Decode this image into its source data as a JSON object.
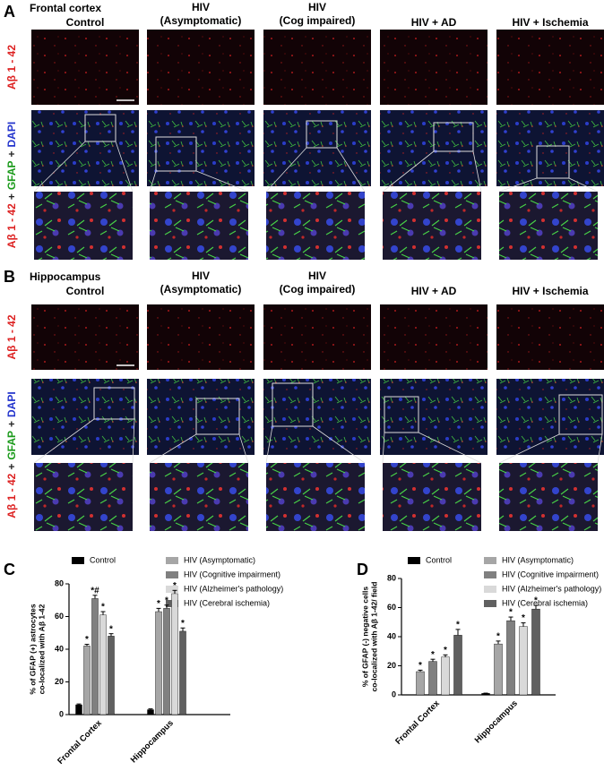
{
  "panels": [
    {
      "letter": "A",
      "region": "Frontal cortex",
      "columns": [
        [
          "Control"
        ],
        [
          "HIV",
          "(Asymptomatic)"
        ],
        [
          "HIV",
          "(Cog impaired)"
        ],
        [
          "HIV + AD"
        ],
        [
          "HIV + Ischemia"
        ]
      ],
      "row_labels": [
        [
          "Aβ 1 - 42"
        ],
        [
          "Aβ 1 - 42",
          "+",
          "GFAP",
          "+",
          "DAPI"
        ]
      ]
    },
    {
      "letter": "B",
      "region": "Hippocampus",
      "columns": [
        [
          "Control"
        ],
        [
          "HIV",
          "(Asymptomatic)"
        ],
        [
          "HIV",
          "(Cog impaired)"
        ],
        [
          "HIV + AD"
        ],
        [
          "HIV + Ischemia"
        ]
      ],
      "row_labels": [
        [
          "Aβ 1 - 42"
        ],
        [
          "Aβ 1 - 42",
          "+",
          "GFAP",
          "+",
          "DAPI"
        ]
      ]
    }
  ],
  "chart_data": [
    {
      "type": "bar",
      "panel_label": "C",
      "y_label": [
        "% of GFAP (+) astrocytes",
        "co-localized with Aβ 1-42"
      ],
      "categories": [
        "Frontal Cortex",
        "Hippocampus"
      ],
      "ylim": [
        0,
        80
      ],
      "yticks": [
        0,
        20,
        40,
        60,
        80
      ],
      "series": [
        {
          "name": "Control",
          "color": "#000000",
          "values": [
            6,
            3
          ],
          "errors": [
            0.5,
            0.5
          ],
          "annotations": [
            null,
            null
          ]
        },
        {
          "name": "HIV (Asymptomatic)",
          "color": "#a6a6a6",
          "values": [
            42,
            63
          ],
          "errors": [
            1,
            2
          ],
          "annotations": [
            "*",
            "*"
          ]
        },
        {
          "name": "HIV (Cognitive impairment)",
          "color": "#808080",
          "values": [
            71,
            65
          ],
          "errors": [
            2,
            2
          ],
          "annotations": [
            "*#",
            "*"
          ]
        },
        {
          "name": "HIV (Alzheimer's pathology)",
          "color": "#d9d9d9",
          "values": [
            61,
            74
          ],
          "errors": [
            2,
            2
          ],
          "annotations": [
            "*",
            "*"
          ]
        },
        {
          "name": "HIV (Cerebral ischemia)",
          "color": "#606060",
          "values": [
            48,
            51
          ],
          "errors": [
            1.5,
            2
          ],
          "annotations": [
            "*",
            "*"
          ]
        }
      ]
    },
    {
      "type": "bar",
      "panel_label": "D",
      "y_label": [
        "% of GFAP (-) negative cells",
        "co-localized with Aβ 1-42/ field"
      ],
      "categories": [
        "Frontal Cortex",
        "Hippocampus"
      ],
      "ylim": [
        0,
        80
      ],
      "yticks": [
        0,
        20,
        40,
        60,
        80
      ],
      "series": [
        {
          "name": "Control",
          "color": "#000000",
          "values": [
            0,
            1
          ],
          "errors": [
            0,
            0.2
          ],
          "annotations": [
            null,
            null
          ]
        },
        {
          "name": "HIV (Asymptomatic)",
          "color": "#a6a6a6",
          "values": [
            16,
            35
          ],
          "errors": [
            1,
            2
          ],
          "annotations": [
            "*",
            "*"
          ]
        },
        {
          "name": "HIV (Cognitive impairment)",
          "color": "#808080",
          "values": [
            23,
            51
          ],
          "errors": [
            1.5,
            2.5
          ],
          "annotations": [
            "*",
            "*"
          ]
        },
        {
          "name": "HIV (Alzheimer's pathology)",
          "color": "#d9d9d9",
          "values": [
            26,
            47
          ],
          "errors": [
            1.5,
            2.5
          ],
          "annotations": [
            "*",
            "*"
          ]
        },
        {
          "name": "HIV (Cerebral ischemia)",
          "color": "#606060",
          "values": [
            41,
            59
          ],
          "errors": [
            4,
            2.5
          ],
          "annotations": [
            "*",
            "*"
          ]
        }
      ]
    }
  ]
}
